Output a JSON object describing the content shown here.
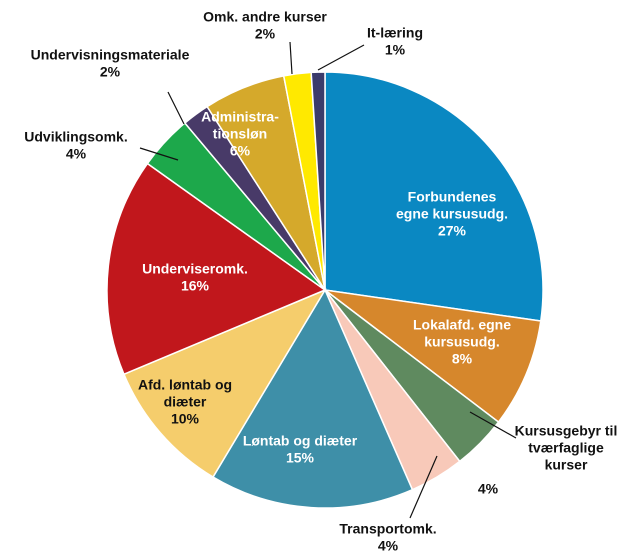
{
  "chart_data": {
    "type": "pie",
    "categories": [
      [
        "Forbundenes",
        "egne kursusudg."
      ],
      [
        "Lokalafd. egne",
        "kursusudg."
      ],
      [
        "Kursusgebyr til",
        "tværfaglige",
        "kurser"
      ],
      [
        "Transportomk."
      ],
      [
        "Løntab og diæter"
      ],
      [
        "Afd. løntab og",
        "diæter"
      ],
      [
        "Underviseromk."
      ],
      [
        "Udviklingsomk."
      ],
      [
        "Undervisningsmateriale"
      ],
      [
        "Administra-",
        "tionsløn"
      ],
      [
        "Omk. andre kurser"
      ],
      [
        "It-læring"
      ]
    ],
    "values": [
      27,
      8,
      4,
      4,
      15,
      10,
      16,
      4,
      2,
      6,
      2,
      1
    ],
    "value_labels": [
      "27%",
      "8%",
      "4%",
      "4%",
      "15%",
      "10%",
      "16%",
      "4%",
      "2%",
      "6%",
      "2%",
      "1%"
    ],
    "colors": [
      "#0a88c2",
      "#d6872c",
      "#5f8a5f",
      "#f8c9b9",
      "#3e8fa8",
      "#f5cd6c",
      "#c1171c",
      "#1da84b",
      "#483a68",
      "#d5a92b",
      "#ffe900",
      "#3b3b6b"
    ]
  }
}
